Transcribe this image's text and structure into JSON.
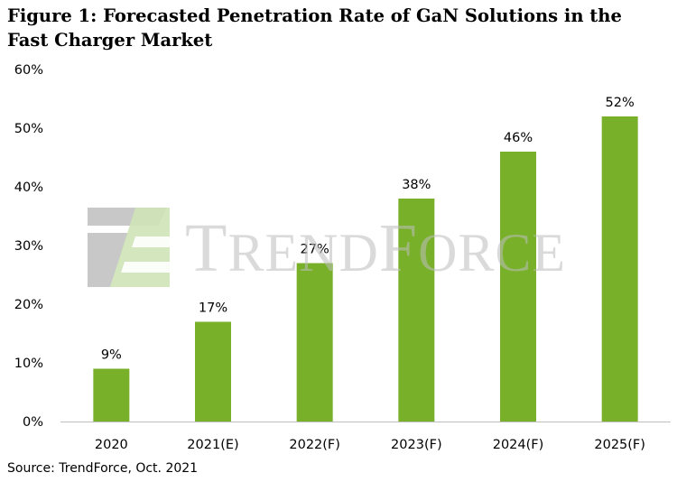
{
  "title": "Figure 1: Forecasted Penetration Rate of GaN Solutions in the Fast Charger Market",
  "source": "Source: TrendForce, Oct. 2021",
  "watermark": "TRENDFORCE",
  "colors": {
    "bar": "#78b02a",
    "axis": "#bfbfbf",
    "text": "#000000",
    "watermark_gray": "#b5b5b5",
    "watermark_green": "#cfe3b6"
  },
  "chart_data": {
    "type": "bar",
    "categories": [
      "2020",
      "2021(E)",
      "2022(F)",
      "2023(F)",
      "2024(F)",
      "2025(F)"
    ],
    "values": [
      9,
      17,
      27,
      38,
      46,
      52
    ],
    "data_labels": [
      "9%",
      "17%",
      "27%",
      "38%",
      "46%",
      "52%"
    ],
    "ylim": [
      0,
      60
    ],
    "yticks": [
      "0%",
      "10%",
      "20%",
      "30%",
      "40%",
      "50%",
      "60%"
    ],
    "xlabel": "",
    "ylabel": "",
    "grid": false,
    "legend": "none"
  }
}
